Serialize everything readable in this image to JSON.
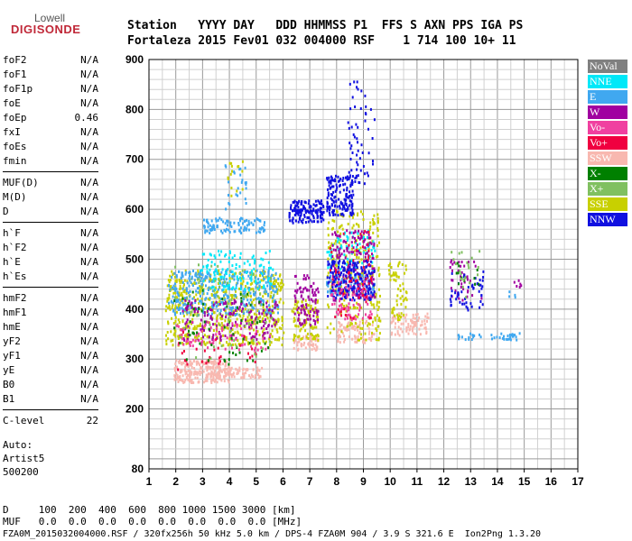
{
  "logo": {
    "top": "Lowell",
    "bottom": "DIGISONDE"
  },
  "header": {
    "line1": "Station   YYYY DAY   DDD HHMMSS P1  FFS S AXN PPS IGA PS",
    "line2": "Fortaleza 2015 Fev01 032 004000 RSF    1 714 100 10+ 11"
  },
  "params": [
    {
      "group": [
        {
          "name": "foF2",
          "value": "N/A"
        },
        {
          "name": "foF1",
          "value": "N/A"
        },
        {
          "name": "foF1p",
          "value": "N/A"
        },
        {
          "name": "foE",
          "value": "N/A"
        },
        {
          "name": "foEp",
          "value": "0.46"
        },
        {
          "name": "fxI",
          "value": "N/A"
        },
        {
          "name": "foEs",
          "value": "N/A"
        },
        {
          "name": "fmin",
          "value": "N/A"
        }
      ]
    },
    {
      "group": [
        {
          "name": "MUF(D)",
          "value": "N/A"
        },
        {
          "name": "M(D)",
          "value": "N/A"
        },
        {
          "name": "D",
          "value": "N/A"
        }
      ]
    },
    {
      "group": [
        {
          "name": "h`F",
          "value": "N/A"
        },
        {
          "name": "h`F2",
          "value": "N/A"
        },
        {
          "name": "h`E",
          "value": "N/A"
        },
        {
          "name": "h`Es",
          "value": "N/A"
        }
      ]
    },
    {
      "group": [
        {
          "name": "hmF2",
          "value": "N/A"
        },
        {
          "name": "hmF1",
          "value": "N/A"
        },
        {
          "name": "hmE",
          "value": "N/A"
        },
        {
          "name": "yF2",
          "value": "N/A"
        },
        {
          "name": "yF1",
          "value": "N/A"
        },
        {
          "name": "yE",
          "value": "N/A"
        },
        {
          "name": "B0",
          "value": "N/A"
        },
        {
          "name": "B1",
          "value": "N/A"
        }
      ]
    },
    {
      "group": [
        {
          "name": "C-level",
          "value": "22"
        }
      ]
    }
  ],
  "auto": {
    "line1": "Auto:",
    "line2": "Artist5",
    "line3": "500200"
  },
  "footer": {
    "d_row": "D     100  200  400  600  800 1000 1500 3000 [km]",
    "muf_row": "MUF   0.0  0.0  0.0  0.0  0.0  0.0  0.0  0.0 [MHz]",
    "info": "FZA0M_2015032004000.RSF / 320fx256h 50 kHz 5.0 km / DPS-4 FZA0M 904 / 3.9 S 321.6 E  Ion2Png 1.3.20"
  },
  "legend": [
    {
      "label": "NoVal",
      "color": "#808080"
    },
    {
      "label": "NNE",
      "color": "#00e8f8"
    },
    {
      "label": "E",
      "color": "#40a8f0"
    },
    {
      "label": "W",
      "color": "#a000a0"
    },
    {
      "label": "Vo-",
      "color": "#f040a0"
    },
    {
      "label": "Vo+",
      "color": "#f00040"
    },
    {
      "label": "SSW",
      "color": "#f8b8b0"
    },
    {
      "label": "X-",
      "color": "#008000"
    },
    {
      "label": "X+",
      "color": "#80c060"
    },
    {
      "label": "SSE",
      "color": "#c8d000"
    },
    {
      "label": "NNW",
      "color": "#1010e0"
    }
  ],
  "chart_data": {
    "type": "scatter",
    "xlim": [
      1,
      17
    ],
    "ylim": [
      80,
      900
    ],
    "x_ticks": [
      1,
      2,
      3,
      4,
      5,
      6,
      7,
      8,
      9,
      10,
      11,
      12,
      13,
      14,
      15,
      16,
      17
    ],
    "y_ticks": [
      80,
      200,
      300,
      400,
      500,
      600,
      700,
      800,
      900
    ],
    "grid": true,
    "clusters": [
      {
        "name": "SSW",
        "x": [
          1.9,
          4.0
        ],
        "y": [
          255,
          300
        ],
        "n": 240
      },
      {
        "name": "SSW",
        "x": [
          3.5,
          5.2
        ],
        "y": [
          265,
          285
        ],
        "n": 60
      },
      {
        "name": "SSW",
        "x": [
          6.3,
          7.3
        ],
        "y": [
          320,
          350
        ],
        "n": 50
      },
      {
        "name": "SSW",
        "x": [
          8.0,
          9.4
        ],
        "y": [
          335,
          380
        ],
        "n": 80
      },
      {
        "name": "SSW",
        "x": [
          10.0,
          11.4
        ],
        "y": [
          350,
          395
        ],
        "n": 80
      },
      {
        "name": "SSE",
        "x": [
          1.6,
          6.0
        ],
        "y": [
          330,
          480
        ],
        "n": 600
      },
      {
        "name": "SSE",
        "x": [
          6.3,
          7.3
        ],
        "y": [
          340,
          420
        ],
        "n": 90
      },
      {
        "name": "SSE",
        "x": [
          7.6,
          9.6
        ],
        "y": [
          340,
          600
        ],
        "n": 260
      },
      {
        "name": "SSE",
        "x": [
          9.9,
          10.6
        ],
        "y": [
          380,
          500
        ],
        "n": 60
      },
      {
        "name": "E",
        "x": [
          1.7,
          5.8
        ],
        "y": [
          390,
          480
        ],
        "n": 360
      },
      {
        "name": "E",
        "x": [
          3.0,
          5.3
        ],
        "y": [
          555,
          585
        ],
        "n": 100
      },
      {
        "name": "E",
        "x": [
          7.6,
          9.4
        ],
        "y": [
          430,
          470
        ],
        "n": 90
      },
      {
        "name": "E",
        "x": [
          12.5,
          14.8
        ],
        "y": [
          340,
          355
        ],
        "n": 40
      },
      {
        "name": "NNE",
        "x": [
          2.9,
          5.6
        ],
        "y": [
          440,
          520
        ],
        "n": 120
      },
      {
        "name": "NNE",
        "x": [
          7.6,
          9.4
        ],
        "y": [
          480,
          560
        ],
        "n": 70
      },
      {
        "name": "W",
        "x": [
          2.2,
          5.8
        ],
        "y": [
          340,
          420
        ],
        "n": 160
      },
      {
        "name": "W",
        "x": [
          6.4,
          7.3
        ],
        "y": [
          370,
          470
        ],
        "n": 90
      },
      {
        "name": "W",
        "x": [
          7.8,
          9.4
        ],
        "y": [
          420,
          560
        ],
        "n": 180
      },
      {
        "name": "W",
        "x": [
          12.2,
          13.4
        ],
        "y": [
          420,
          500
        ],
        "n": 40
      },
      {
        "name": "NNW",
        "x": [
          6.2,
          7.5
        ],
        "y": [
          575,
          620
        ],
        "n": 140
      },
      {
        "name": "NNW",
        "x": [
          7.6,
          8.6
        ],
        "y": [
          590,
          670
        ],
        "n": 150
      },
      {
        "name": "NNW",
        "x": [
          7.6,
          9.4
        ],
        "y": [
          420,
          500
        ],
        "n": 180
      },
      {
        "name": "NNW",
        "x": [
          8.4,
          9.4
        ],
        "y": [
          650,
          860
        ],
        "n": 60
      },
      {
        "name": "NNW",
        "x": [
          12.2,
          13.5
        ],
        "y": [
          400,
          480
        ],
        "n": 50
      },
      {
        "name": "Vo-",
        "x": [
          2.0,
          5.5
        ],
        "y": [
          320,
          380
        ],
        "n": 80
      },
      {
        "name": "Vo-",
        "x": [
          7.7,
          9.3
        ],
        "y": [
          380,
          460
        ],
        "n": 70
      },
      {
        "name": "Vo+",
        "x": [
          7.7,
          9.3
        ],
        "y": [
          380,
          560
        ],
        "n": 50
      },
      {
        "name": "Vo+",
        "x": [
          2.0,
          5.0
        ],
        "y": [
          280,
          360
        ],
        "n": 30
      },
      {
        "name": "X-",
        "x": [
          1.9,
          5.5
        ],
        "y": [
          290,
          440
        ],
        "n": 60
      },
      {
        "name": "X-",
        "x": [
          12.3,
          13.3
        ],
        "y": [
          440,
          500
        ],
        "n": 12
      },
      {
        "name": "X+",
        "x": [
          1.9,
          5.8
        ],
        "y": [
          300,
          500
        ],
        "n": 60
      },
      {
        "name": "X+",
        "x": [
          12.2,
          13.3
        ],
        "y": [
          420,
          520
        ],
        "n": 20
      },
      {
        "name": "E",
        "x": [
          3.8,
          4.6
        ],
        "y": [
          600,
          700
        ],
        "n": 25
      },
      {
        "name": "SSE",
        "x": [
          3.9,
          4.5
        ],
        "y": [
          620,
          720
        ],
        "n": 15
      },
      {
        "name": "W",
        "x": [
          14.6,
          14.9
        ],
        "y": [
          440,
          460
        ],
        "n": 6
      },
      {
        "name": "E",
        "x": [
          14.4,
          14.7
        ],
        "y": [
          420,
          440
        ],
        "n": 4
      }
    ]
  }
}
